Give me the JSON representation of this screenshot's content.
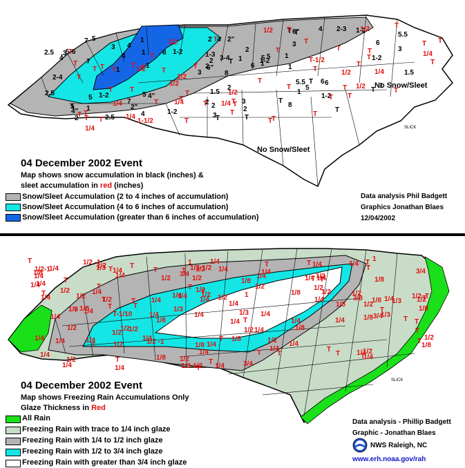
{
  "colors": {
    "gray": "#b4b4b4",
    "cyan": "#14e6e6",
    "blue": "#1466e6",
    "green": "#19e019",
    "light_green": "#c8dcc8",
    "white": "#ffffff",
    "red": "#e01010",
    "link_blue": "#1414c8"
  },
  "top_map": {
    "title": "04 December 2002 Event",
    "subtitle_line1": "Map shows snow accumulation in black (inches) &",
    "subtitle_line2_pre": "sleet accumulation in ",
    "subtitle_line2_red": "red",
    "subtitle_line2_post": " (inches)",
    "legend": [
      {
        "label": "Snow/Sleet Accumulation (2 to 4 inches of accumulation)",
        "color": "gray"
      },
      {
        "label": "Snow/Sleet Accumulation (4 to 6 inches of accumulation)",
        "color": "cyan"
      },
      {
        "label": "Snow/Sleet Accumulation (greater than 6 inches of accumulation)",
        "color": "blue"
      }
    ],
    "credits": {
      "analysis": "Data analysis   Phil Badgett",
      "graphics": "Graphics     Jonathan Blaes",
      "date": "12/04/2002"
    },
    "region_labels": [
      "No Snow/Sleet",
      "No Snow/Sleet"
    ],
    "watermark": "SLICK",
    "map_labels": {
      "black": [
        "8",
        "7",
        "6\"",
        "5",
        "5",
        "4\"",
        "2\"",
        "6\"",
        "6",
        "7",
        "5.5",
        "3",
        "3",
        "2.5",
        "2",
        "2",
        "1-2",
        "1-2",
        "4\"",
        "2\"",
        "4",
        "5",
        "6",
        "5",
        "4",
        "5.5",
        "3",
        "2",
        "2",
        "2",
        "1",
        "4",
        "5",
        "6",
        "8",
        "4",
        "1",
        "4",
        "2.5",
        "1-2",
        "2",
        "2",
        "1",
        "5",
        "6",
        "5",
        "8",
        "7",
        "3",
        "1-2",
        "1",
        "5-6",
        "4",
        "2-3",
        "3-4",
        "2.5",
        "1.5",
        "1-2",
        "T",
        "1",
        "1",
        "3",
        "2-4",
        "1-3",
        "2",
        "1",
        "1",
        "1",
        "1",
        "3",
        "1-2",
        "2",
        "T",
        "T",
        "T",
        "1.5",
        "1",
        "1-2",
        "T",
        "T",
        ".3",
        "T",
        "T",
        "T",
        "1"
      ],
      "red": [
        "1/2",
        "1/2",
        "1/2",
        "1/2",
        "1/4",
        "1/2",
        "1/4",
        "1/2",
        "1/4",
        "1/2",
        "1/2",
        "T",
        "T",
        "T",
        "T",
        "T",
        "T",
        "T",
        "T",
        "T",
        "T",
        "T",
        "T",
        "T",
        "T",
        "T",
        "T",
        "T",
        "T",
        "T",
        "T",
        "T",
        "T",
        "T",
        "T",
        "T",
        "T",
        "T",
        "T",
        "T",
        "1/2",
        "1/4",
        "T-1/2",
        "1-1/2",
        "1/4",
        "1/4",
        "T",
        "T",
        "T",
        "T",
        "T",
        "T",
        "T",
        "T",
        "T",
        "T",
        "T",
        "T",
        "T",
        "T",
        "T",
        "T",
        "T",
        "1/4",
        "T"
      ]
    }
  },
  "bottom_map": {
    "title": "04 December 2002 Event",
    "subtitle_line1": "Map shows Freezing Rain Accumulations Only",
    "subtitle_line2_pre": "Glaze Thickness in ",
    "subtitle_line2_red": "Red",
    "legend": [
      {
        "label": "All Rain",
        "color": "green"
      },
      {
        "label": "Freezing Rain with trace to 1/4 inch glaze",
        "color": "light_green"
      },
      {
        "label": "Freezing Rain with 1/4 to 1/2 inch glaze",
        "color": "gray"
      },
      {
        "label": "Freezing Rain with 1/2 to 3/4 inch glaze",
        "color": "cyan"
      },
      {
        "label": "Freezing Rain with greater than 3/4 inch glaze",
        "color": "white"
      }
    ],
    "credits": {
      "analysis": "Data analysis - Phillip Badgett",
      "graphics": "Graphic - Jonathan Blaes",
      "office": "NWS Raleigh, NC",
      "url": "www.erh.noaa.gov/rah"
    },
    "watermark": "SLICK",
    "map_labels": {
      "red": [
        "1/4",
        "1/2",
        "1/4",
        "T",
        "1/8",
        "1/4",
        "1/4",
        "1/4",
        "1/4",
        "1/4",
        "1/4",
        "1/4",
        "1/4",
        "1/2",
        "1/2",
        "1/2",
        "1/4",
        "T",
        "1/4",
        "1/4",
        "1/2",
        "1/4",
        "3/8",
        "1/2",
        "1/4",
        "1/4",
        "1/4",
        "1/4",
        "1/4",
        "1/4",
        "1/2",
        "1/2",
        "1/2",
        "1/4",
        "1/2",
        "1/2 -1",
        "1/4",
        "1/4",
        "1/4",
        "1/2",
        "1/4",
        "1/3",
        "1/3-1/2",
        "1/2",
        "1",
        "1",
        "1/2",
        "1/2",
        "1/2",
        "1/2",
        "3/4",
        "1/2",
        "1/2 -1",
        "1/4",
        "T",
        "1/8",
        "1/4",
        "1/2",
        "3/4",
        "1/2",
        "1",
        "1/2",
        "1/2",
        "1/2",
        "1/4",
        "1/8",
        "1/3",
        "1/3",
        "1/2",
        "3/4",
        "1/2-1",
        "3/4",
        "1/2",
        "1/4",
        "1/8",
        "1/4",
        "1/4",
        "1/3",
        "1/3-1/2",
        "1/2",
        "1/2",
        "1/2",
        "1/4",
        "1/4",
        "1/4",
        "1/8",
        "1/4",
        "1/3",
        "1/2",
        "1/2",
        "1/4",
        "1/4",
        "1/4",
        "1/8",
        "1/8",
        "T-1/10",
        "1/8",
        "1/4",
        "1/4",
        "1/4",
        "1/8",
        "1/8",
        "1/8",
        "1/8",
        "T",
        "1/4",
        "1/8",
        "1/8",
        "T",
        "1/4",
        "1/4",
        "1/4",
        "1/8",
        "T",
        "1/4",
        "T",
        "1/4",
        "T",
        "T",
        "T",
        "T",
        "T",
        "T",
        "T",
        "T",
        "T",
        "T",
        "T",
        "T",
        "T",
        "T",
        "T",
        "T",
        "T",
        "T",
        "T",
        "T",
        "T",
        "T",
        "T",
        "T",
        "T",
        "T",
        "T",
        "T",
        "T",
        "T",
        "T",
        "T"
      ]
    }
  }
}
